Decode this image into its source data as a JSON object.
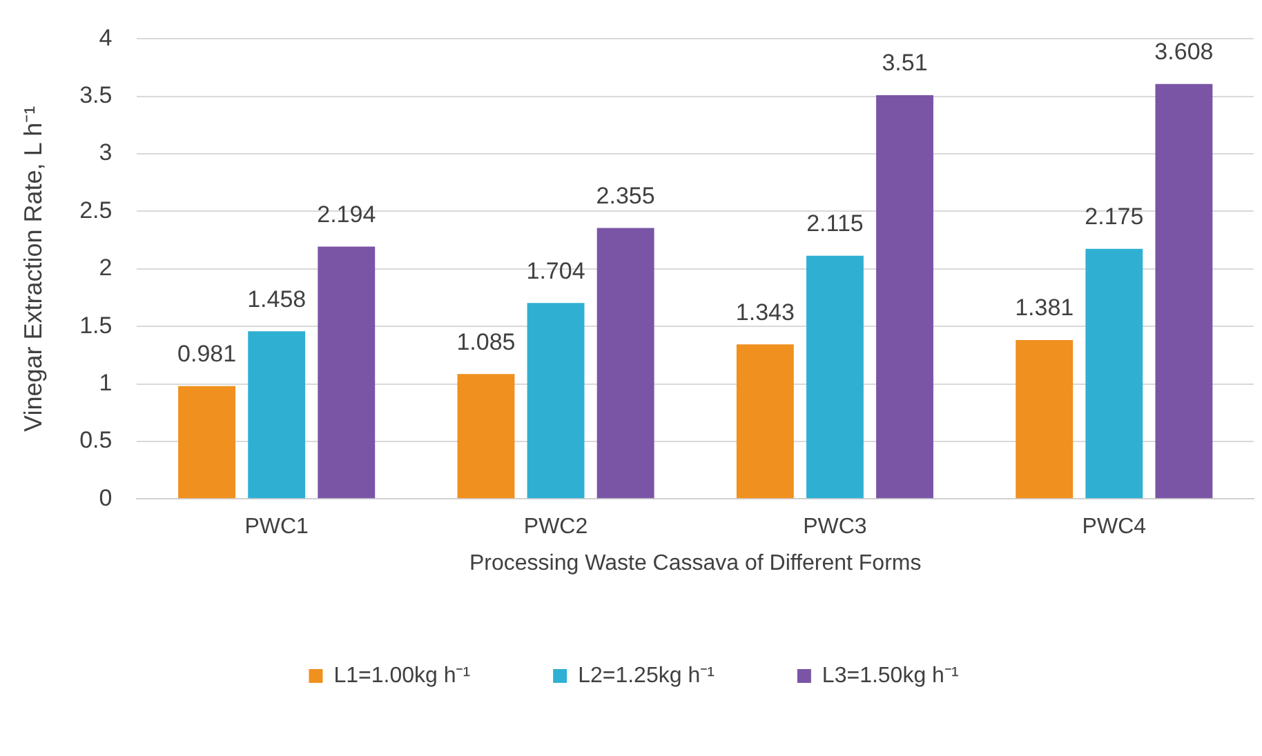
{
  "chart_data": {
    "type": "bar",
    "xlabel": "Processing Waste Cassava of Different Forms",
    "ylabel": "Vinegar Extraction Rate, L h⁻¹",
    "categories": [
      "PWC1",
      "PWC2",
      "PWC3",
      "PWC4"
    ],
    "series": [
      {
        "name": "L1=1.00kg h⁻¹",
        "color": "#f0901e",
        "values": [
          0.981,
          1.085,
          1.343,
          1.381
        ]
      },
      {
        "name": "L2=1.25kg h⁻¹",
        "color": "#2fb0d3",
        "values": [
          1.458,
          1.704,
          2.115,
          2.175
        ]
      },
      {
        "name": "L3=1.50kg h⁻¹",
        "color": "#7a55a6",
        "values": [
          2.194,
          2.355,
          3.51,
          3.608
        ]
      }
    ],
    "ylim": [
      0,
      4
    ],
    "yticks": [
      0,
      0.5,
      1,
      1.5,
      2,
      2.5,
      3,
      3.5,
      4
    ],
    "grid": "y",
    "legend": "bottom",
    "data_labels": true
  }
}
